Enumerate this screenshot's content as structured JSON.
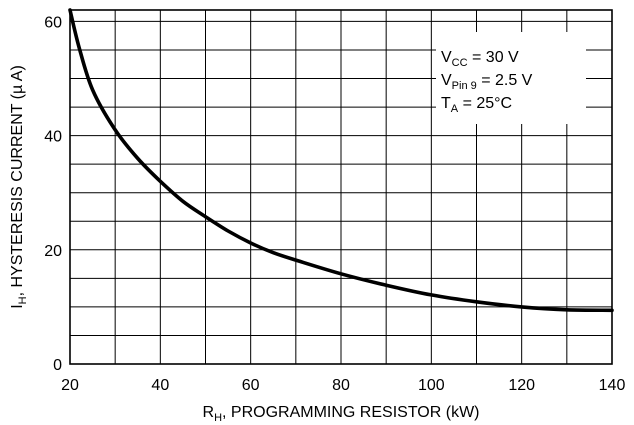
{
  "chart_data": {
    "type": "line",
    "title": "",
    "xlabel": {
      "main": "R",
      "sub": "H",
      "rest": ", PROGRAMMING RESISTOR (kW)"
    },
    "ylabel": {
      "main": "I",
      "sub": "H",
      "rest": ", HYSTERESIS CURRENT (µ A)"
    },
    "xlim": [
      20,
      140
    ],
    "ylim": [
      0,
      62
    ],
    "x_ticks": [
      "20",
      "40",
      "60",
      "80",
      "100",
      "120",
      "140"
    ],
    "y_ticks": [
      "0",
      "20",
      "40",
      "60"
    ],
    "grid": true,
    "x_grid_step": 10,
    "y_grid_step": 5,
    "annotations": [
      {
        "main": "V",
        "sub": "CC",
        "rest": " = 30 V"
      },
      {
        "main": "V",
        "sub": "Pin 9",
        "rest": " = 2.5 V"
      },
      {
        "main": "T",
        "sub": "A",
        "rest": " = 25°C"
      }
    ],
    "series": [
      {
        "color": "#000000",
        "x": [
          20,
          22,
          25,
          30,
          35,
          40,
          45,
          50,
          55,
          60,
          65,
          70,
          80,
          90,
          100,
          110,
          120,
          130,
          140
        ],
        "y": [
          62,
          55.5,
          48,
          41,
          36,
          32,
          28.5,
          25.8,
          23.3,
          21.2,
          19.5,
          18.2,
          15.8,
          13.8,
          12.1,
          10.9,
          10.0,
          9.5,
          9.4
        ]
      }
    ]
  }
}
